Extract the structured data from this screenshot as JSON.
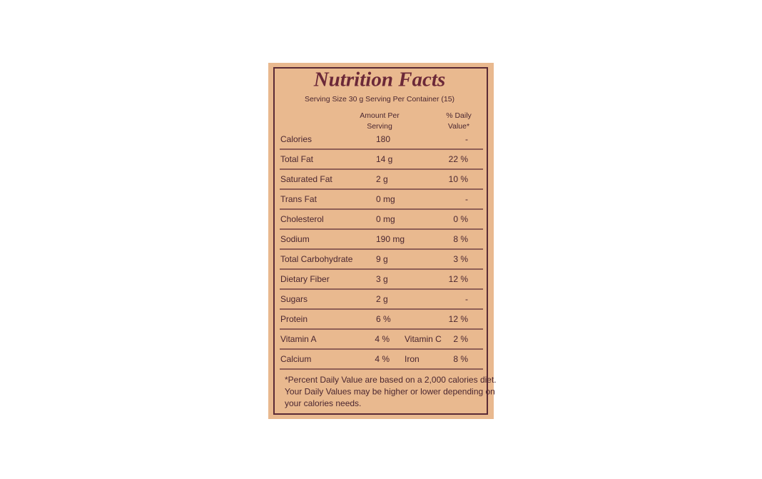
{
  "title": "Nutrition Facts",
  "serving": "Serving Size 30 g Serving Per Container (15)",
  "header": {
    "amount": [
      "Amount Per",
      "Serving"
    ],
    "daily_value": [
      "% Daily",
      "Value*"
    ]
  },
  "rows": [
    [
      "Calories",
      "180",
      "-"
    ],
    [
      "Total Fat",
      "14 g",
      "22 %"
    ],
    [
      "Saturated Fat",
      "2 g",
      "10 %"
    ],
    [
      "Trans Fat",
      "0 mg",
      "-"
    ],
    [
      "Cholesterol",
      "0 mg",
      "0 %"
    ],
    [
      "Sodium",
      "190 mg",
      "8 %"
    ],
    [
      "Total Carbohydrate",
      "9 g",
      "3 %"
    ],
    [
      "Dietary Fiber",
      "3 g",
      "12 %"
    ],
    [
      "Sugars",
      "2 g",
      "-"
    ],
    [
      "Protein",
      "6 %",
      "12 %"
    ],
    [
      "Vitamin A",
      "4 %",
      "Vitamin C",
      "2 %"
    ],
    [
      "Calcium",
      "4 %",
      "Iron",
      "8 %"
    ]
  ],
  "footnote": [
    "*Percent Daily Value are based on a 2,000 calories diet.",
    "Your Daily Values may be higher or lower depending on",
    "your calories needs."
  ]
}
